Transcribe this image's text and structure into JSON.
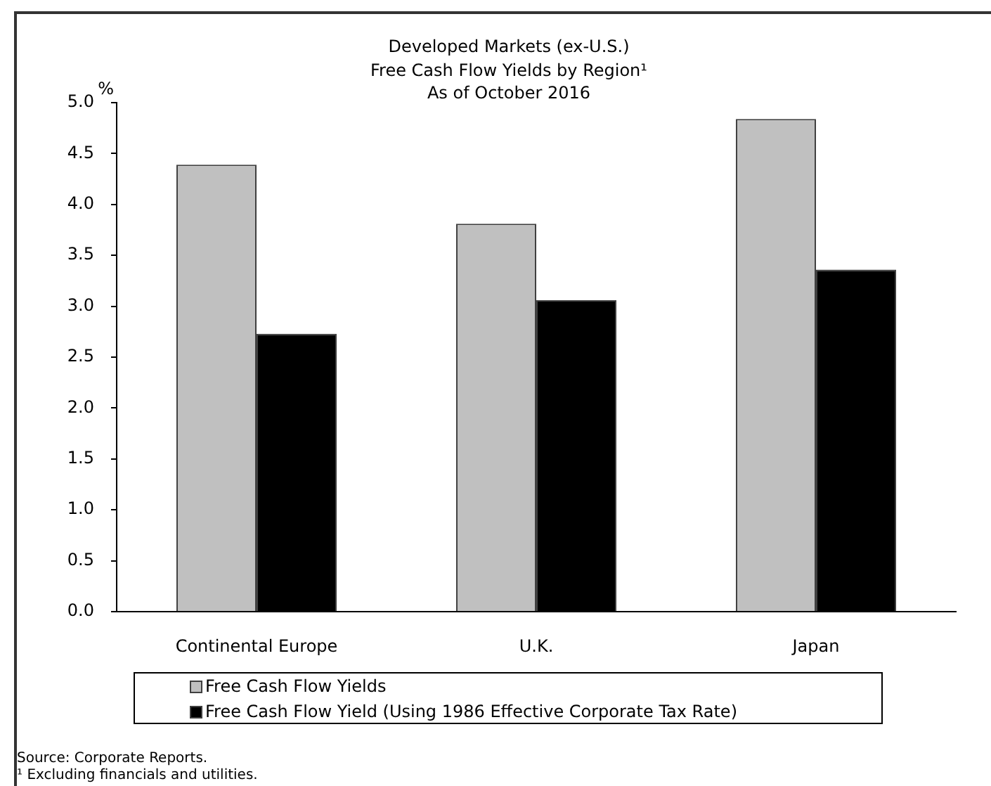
{
  "chart_data": {
    "type": "bar",
    "title": "Developed Markets (ex-U.S.)\nFree Cash Flow Yields by Region¹",
    "subtitle": "As of October 2016",
    "ylabel": "%",
    "categories": [
      "Continental Europe",
      "U.K.",
      "Japan"
    ],
    "series": [
      {
        "name": "Free Cash Flow Yields",
        "color": "#c0c0c0",
        "values": [
          4.39,
          3.81,
          4.84
        ]
      },
      {
        "name": "Free Cash Flow Yield (Using 1986 Effective Corporate Tax Rate)",
        "color": "#000000",
        "values": [
          2.73,
          3.06,
          3.36
        ]
      }
    ],
    "ylim": [
      0,
      5
    ],
    "yticks": [
      {
        "value": 0,
        "label": "0.0"
      },
      0.5,
      {
        "value": 1,
        "label": "1.0"
      },
      1.5,
      {
        "value": 2,
        "label": "2.0"
      },
      2.5,
      {
        "value": 3,
        "label": "3.0"
      },
      3.5,
      {
        "value": 4,
        "label": "4.0"
      },
      4.5,
      {
        "value": 5,
        "label": "5.0"
      }
    ],
    "grid": false,
    "legend": "bottom",
    "annotations": [
      "Source: Corporate Reports.",
      "¹ Excluding financials and utilities."
    ]
  }
}
